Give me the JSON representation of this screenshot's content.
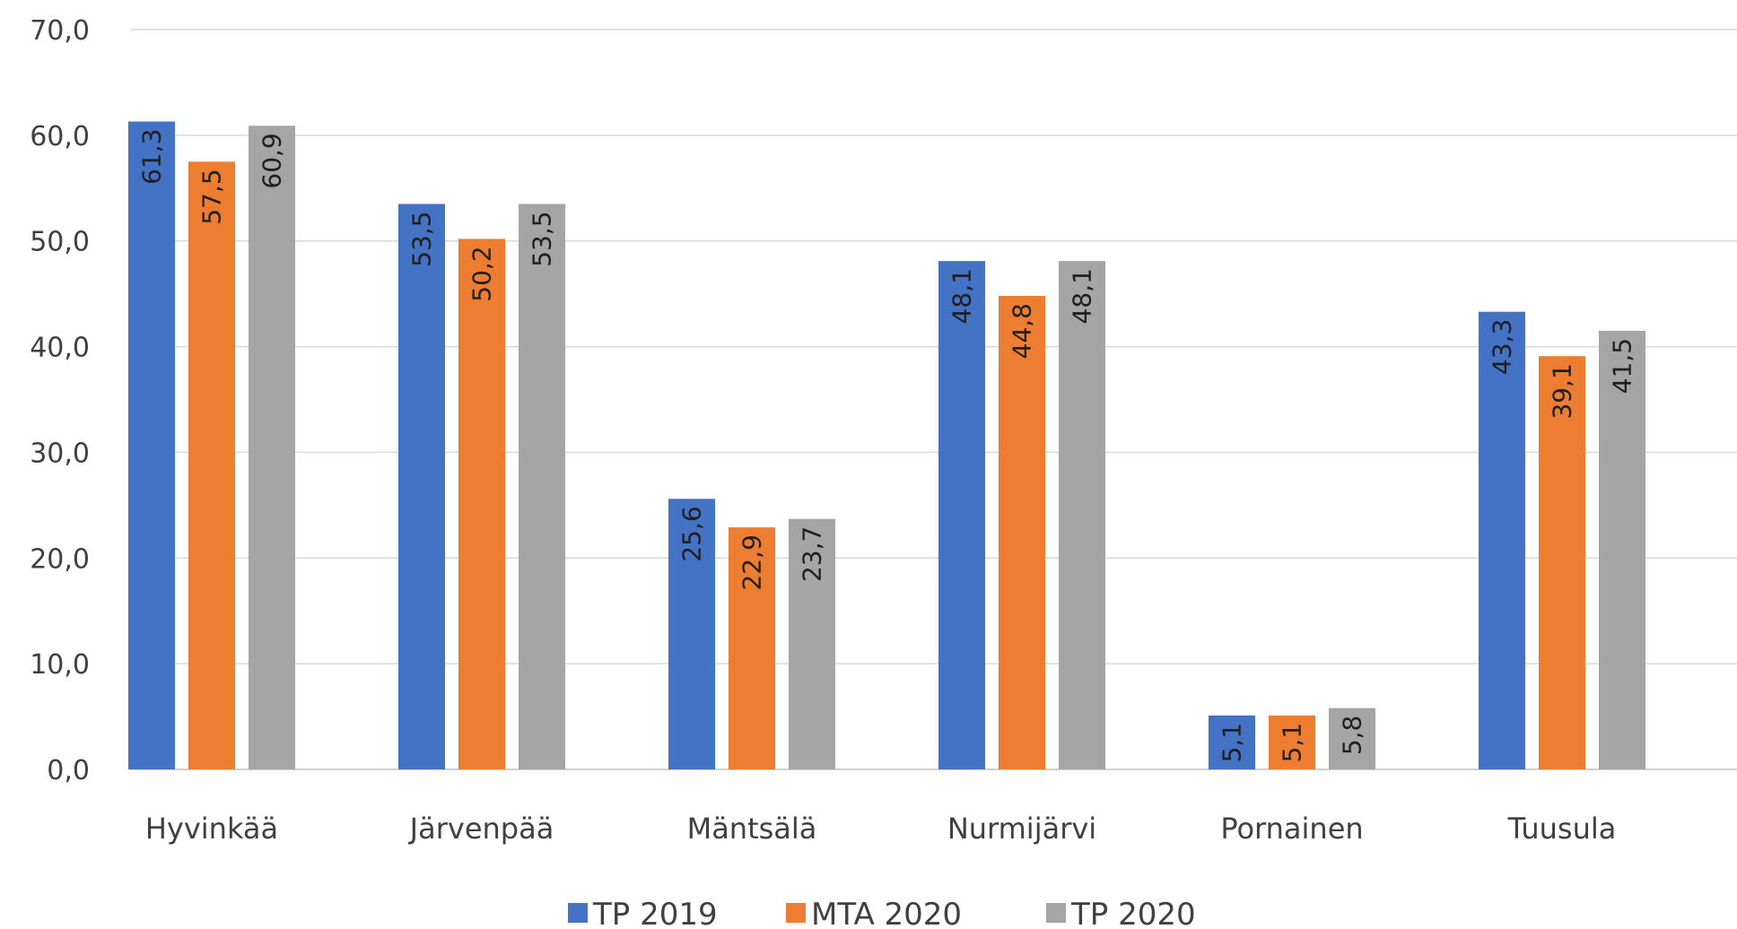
{
  "chart_data": {
    "type": "bar",
    "title": "",
    "xlabel": "",
    "ylabel": "",
    "ylim": [
      0,
      70
    ],
    "yticks": [
      "0,0",
      "10,0",
      "20,0",
      "30,0",
      "40,0",
      "50,0",
      "60,0",
      "70,0"
    ],
    "grid": true,
    "legend_position": "bottom",
    "categories": [
      "Hyvinkää",
      "Järvenpää",
      "Mäntsälä",
      "Nurmijärvi",
      "Pornainen",
      "Tuusula"
    ],
    "series": [
      {
        "name": "TP 2019",
        "color": "#4472C4",
        "label_color": "#1f1f1f",
        "values": [
          61.3,
          53.5,
          25.6,
          48.1,
          5.1,
          43.3
        ],
        "labels": [
          "61,3",
          "53,5",
          "25,6",
          "48,1",
          "5,1",
          "43,3"
        ]
      },
      {
        "name": "MTA 2020",
        "color": "#ED7D31",
        "label_color": "#1f1f1f",
        "values": [
          57.5,
          50.2,
          22.9,
          44.8,
          5.1,
          39.1
        ],
        "labels": [
          "57,5",
          "50,2",
          "22,9",
          "44,8",
          "5,1",
          "39,1"
        ]
      },
      {
        "name": "TP 2020",
        "color": "#A5A5A5",
        "label_color": "#1f1f1f",
        "values": [
          60.9,
          53.5,
          23.7,
          48.1,
          5.8,
          41.5
        ],
        "labels": [
          "60,9",
          "53,5",
          "23,7",
          "48,1",
          "5,8",
          "41,5"
        ]
      }
    ]
  }
}
